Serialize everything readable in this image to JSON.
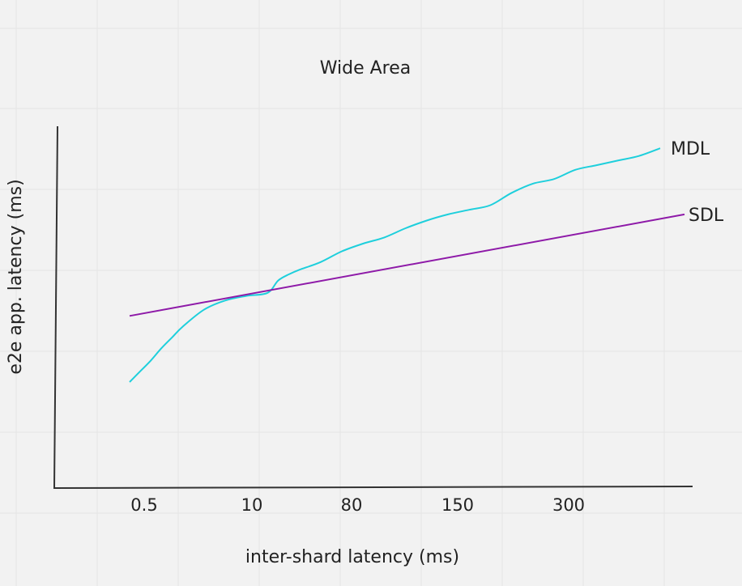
{
  "chart_data": {
    "type": "line",
    "title": "Wide Area",
    "xlabel": "inter-shard latency (ms)",
    "ylabel": "e2e app. latency (ms)",
    "x_ticks": [
      "0.5",
      "10",
      "80",
      "150",
      "300"
    ],
    "grid": true,
    "legend": "inline at line ends (right)",
    "series": [
      {
        "name": "MDL",
        "color": "#1ecfdc",
        "x": [
          0.0,
          0.02,
          0.04,
          0.06,
          0.08,
          0.1,
          0.14,
          0.18,
          0.22,
          0.26,
          0.28,
          0.3,
          0.32,
          0.36,
          0.4,
          0.44,
          0.48,
          0.52,
          0.56,
          0.6,
          0.64,
          0.68,
          0.72,
          0.76,
          0.8,
          0.84,
          0.88,
          0.92,
          0.96,
          1.0
        ],
        "y": [
          0.0,
          0.07,
          0.14,
          0.22,
          0.29,
          0.36,
          0.47,
          0.53,
          0.56,
          0.58,
          0.66,
          0.7,
          0.73,
          0.78,
          0.85,
          0.9,
          0.94,
          1.0,
          1.05,
          1.09,
          1.12,
          1.15,
          1.23,
          1.29,
          1.32,
          1.38,
          1.41,
          1.44,
          1.47,
          1.52
        ]
      },
      {
        "name": "SDL",
        "color": "#8e1aa8",
        "x": [
          0.0,
          1.0
        ],
        "y": [
          0.43,
          1.09
        ]
      }
    ],
    "xlim": [
      0,
      1
    ],
    "ylim": [
      0,
      1.6
    ]
  }
}
